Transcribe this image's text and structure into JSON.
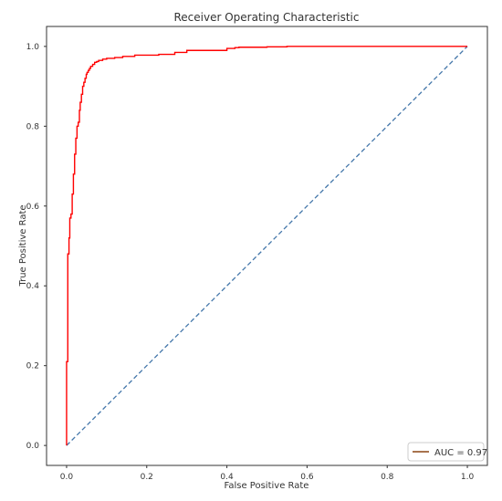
{
  "chart_data": {
    "type": "line",
    "title": "Receiver Operating Characteristic",
    "xlabel": "False Positive Rate",
    "ylabel": "True Positive Rate",
    "xlim": [
      -0.05,
      1.05
    ],
    "ylim": [
      -0.05,
      1.05
    ],
    "xticks": [
      "0.0",
      "0.2",
      "0.4",
      "0.6",
      "0.8",
      "1.0"
    ],
    "yticks": [
      "0.0",
      "0.2",
      "0.4",
      "0.6",
      "0.8",
      "1.0"
    ],
    "grid": false,
    "legend_position": "lower-right",
    "series": [
      {
        "name": "AUC = 0.97",
        "color": "#ff0000",
        "legend_color": "#8b4513",
        "style": "step",
        "x": [
          0.0,
          0.0,
          0.003,
          0.003,
          0.006,
          0.006,
          0.008,
          0.008,
          0.011,
          0.011,
          0.014,
          0.014,
          0.017,
          0.017,
          0.02,
          0.02,
          0.023,
          0.023,
          0.026,
          0.026,
          0.029,
          0.029,
          0.032,
          0.032,
          0.034,
          0.034,
          0.037,
          0.037,
          0.04,
          0.04,
          0.043,
          0.043,
          0.046,
          0.046,
          0.049,
          0.049,
          0.051,
          0.051,
          0.054,
          0.054,
          0.057,
          0.057,
          0.06,
          0.06,
          0.065,
          0.065,
          0.07,
          0.07,
          0.075,
          0.075,
          0.08,
          0.08,
          0.09,
          0.09,
          0.1,
          0.1,
          0.12,
          0.12,
          0.14,
          0.14,
          0.17,
          0.17,
          0.23,
          0.23,
          0.27,
          0.27,
          0.3,
          0.3,
          0.4,
          0.4,
          0.42,
          0.42,
          0.43,
          0.43,
          0.5,
          0.5,
          0.55,
          0.55,
          0.6,
          0.6,
          0.65,
          0.65,
          0.72,
          0.72,
          1.0
        ],
        "y": [
          0.0,
          0.21,
          0.21,
          0.48,
          0.48,
          0.52,
          0.52,
          0.57,
          0.57,
          0.58,
          0.58,
          0.63,
          0.63,
          0.68,
          0.68,
          0.73,
          0.73,
          0.77,
          0.77,
          0.8,
          0.8,
          0.81,
          0.81,
          0.84,
          0.84,
          0.86,
          0.86,
          0.88,
          0.88,
          0.9,
          0.9,
          0.91,
          0.91,
          0.92,
          0.92,
          0.93,
          0.93,
          0.935,
          0.935,
          0.94,
          0.94,
          0.945,
          0.945,
          0.95,
          0.95,
          0.955,
          0.955,
          0.96,
          0.96,
          0.962,
          0.962,
          0.965,
          0.965,
          0.968,
          0.968,
          0.97,
          0.97,
          0.972,
          0.972,
          0.975,
          0.975,
          0.978,
          0.978,
          0.98,
          0.98,
          0.985,
          0.985,
          0.99,
          0.99,
          0.995,
          0.995,
          0.997,
          0.997,
          0.998,
          0.998,
          0.999,
          0.999,
          1.0,
          1.0,
          1.0,
          1.0,
          1.0,
          1.0,
          1.0,
          1.0
        ]
      },
      {
        "name": "",
        "color": "#4477aa",
        "style": "dashed",
        "x": [
          0.0,
          1.0
        ],
        "y": [
          0.0,
          1.0
        ]
      }
    ]
  }
}
